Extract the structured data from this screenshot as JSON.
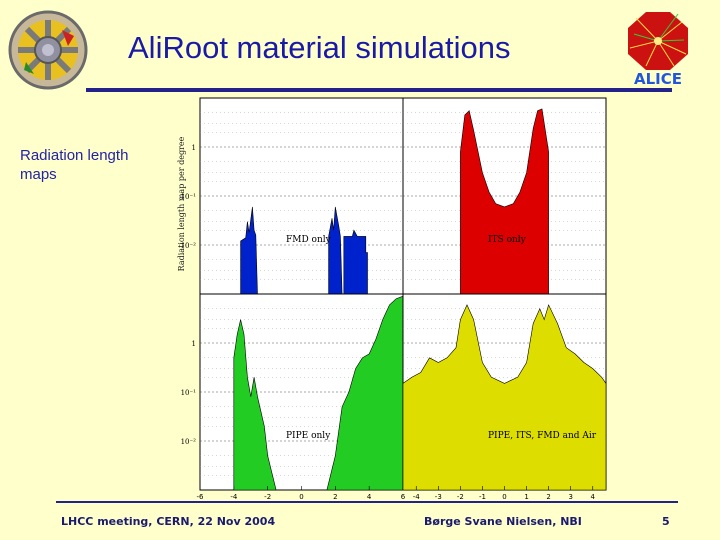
{
  "title": "AliRoot material simulations",
  "sidebar": {
    "line1": "Radiation length",
    "line2": "maps"
  },
  "footer": {
    "event": "LHCC meeting, CERN, 22 Nov 2004",
    "author": "Børge Svane Nielsen, NBI",
    "page": "5"
  },
  "colors": {
    "background": "#ffffcc",
    "title": "#1a1aa6",
    "accent_line": "#22228a",
    "fmd": "#0022cc",
    "its": "#dd0000",
    "pipe": "#22cc22",
    "all": "#dddd00"
  },
  "icons": {
    "left_logo": "detector-wheel-logo",
    "right_logo": "alice-logo"
  },
  "chart_data": [
    {
      "type": "area",
      "scale": "log",
      "ylim": [
        0.001,
        10
      ],
      "ylabel": "Radiation length map per degree",
      "y_tick_labels": [
        "1",
        "10⁻¹",
        "10⁻²"
      ],
      "x_tick_labels": [],
      "series": [
        {
          "name": "FMD only",
          "color": "#0022cc",
          "segments": [
            [
              [
                -3.6,
                0.001
              ],
              [
                -3.6,
                0.012
              ],
              [
                -3.3,
                0.014
              ],
              [
                -3.2,
                0.03
              ],
              [
                -3.1,
                0.018
              ],
              [
                -2.9,
                0.06
              ],
              [
                -2.8,
                0.02
              ],
              [
                -2.7,
                0.016
              ],
              [
                -2.6,
                0.001
              ]
            ],
            [
              [
                1.6,
                0.001
              ],
              [
                1.6,
                0.015
              ],
              [
                1.8,
                0.035
              ],
              [
                1.9,
                0.02
              ],
              [
                2.0,
                0.06
              ],
              [
                2.2,
                0.025
              ],
              [
                2.3,
                0.015
              ],
              [
                2.4,
                0.001
              ]
            ],
            [
              [
                2.5,
                0.001
              ],
              [
                2.5,
                0.015
              ],
              [
                3.0,
                0.015
              ],
              [
                3.1,
                0.02
              ],
              [
                3.3,
                0.015
              ],
              [
                3.8,
                0.015
              ],
              [
                3.8,
                0.007
              ],
              [
                3.9,
                0.007
              ],
              [
                3.9,
                0.001
              ]
            ]
          ]
        }
      ]
    },
    {
      "type": "area",
      "scale": "log",
      "ylim": [
        0.001,
        10
      ],
      "x_tick_labels": [],
      "series": [
        {
          "name": "ITS only",
          "color": "#dd0000",
          "segments": [
            [
              [
                -2.0,
                0.001
              ],
              [
                -2.0,
                0.8
              ],
              [
                -1.8,
                4.5
              ],
              [
                -1.6,
                5.5
              ],
              [
                -1.4,
                2.2
              ],
              [
                -1.0,
                0.3
              ],
              [
                -0.7,
                0.12
              ],
              [
                -0.4,
                0.07
              ],
              [
                0,
                0.06
              ],
              [
                0.4,
                0.07
              ],
              [
                0.7,
                0.12
              ],
              [
                1.0,
                0.3
              ],
              [
                1.3,
                2.4
              ],
              [
                1.5,
                5.5
              ],
              [
                1.7,
                6
              ],
              [
                2.0,
                0.8
              ],
              [
                2.0,
                0.001
              ]
            ]
          ]
        }
      ]
    },
    {
      "type": "area",
      "scale": "log",
      "ylim": [
        0.001,
        10
      ],
      "y_tick_labels": [
        "1",
        "10⁻¹",
        "10⁻²"
      ],
      "x_tick_labels": [
        "-6",
        "-4",
        "-2",
        "0",
        "2",
        "4",
        "6"
      ],
      "series": [
        {
          "name": "PIPE only",
          "color": "#22cc22",
          "segments": [
            [
              [
                -4.0,
                0.001
              ],
              [
                -4.0,
                0.5
              ],
              [
                -3.8,
                1.5
              ],
              [
                -3.6,
                3
              ],
              [
                -3.4,
                1.5
              ],
              [
                -3.2,
                0.2
              ],
              [
                -3.0,
                0.08
              ],
              [
                -2.8,
                0.2
              ],
              [
                -2.6,
                0.08
              ],
              [
                -2.4,
                0.04
              ],
              [
                -2.2,
                0.02
              ],
              [
                -2.0,
                0.005
              ],
              [
                -1.5,
                0.001
              ]
            ],
            [
              [
                1.5,
                0.001
              ],
              [
                2.0,
                0.005
              ],
              [
                2.4,
                0.05
              ],
              [
                2.8,
                0.1
              ],
              [
                3.2,
                0.3
              ],
              [
                3.6,
                0.5
              ],
              [
                4.0,
                0.6
              ],
              [
                4.4,
                1.2
              ],
              [
                4.8,
                3
              ],
              [
                5.2,
                6
              ],
              [
                5.6,
                8
              ],
              [
                6.0,
                9
              ],
              [
                6.0,
                0.001
              ]
            ]
          ]
        }
      ]
    },
    {
      "type": "area",
      "scale": "log",
      "ylim": [
        0.001,
        10
      ],
      "x_tick_labels": [
        "-4",
        "-3",
        "-2",
        "-1",
        "0",
        "1",
        "2",
        "3",
        "4"
      ],
      "series": [
        {
          "name": "PIPE, ITS, FMD and Air",
          "color": "#dddd00",
          "segments": [
            [
              [
                -4.6,
                0.001
              ],
              [
                -4.6,
                0.15
              ],
              [
                -4.2,
                0.2
              ],
              [
                -3.8,
                0.25
              ],
              [
                -3.4,
                0.5
              ],
              [
                -3.0,
                0.4
              ],
              [
                -2.6,
                0.5
              ],
              [
                -2.2,
                0.8
              ],
              [
                -2.0,
                3
              ],
              [
                -1.7,
                6
              ],
              [
                -1.4,
                3
              ],
              [
                -1.0,
                0.4
              ],
              [
                -0.6,
                0.2
              ],
              [
                0,
                0.15
              ],
              [
                0.6,
                0.2
              ],
              [
                1.0,
                0.4
              ],
              [
                1.3,
                2.5
              ],
              [
                1.6,
                5
              ],
              [
                1.8,
                3
              ],
              [
                2.0,
                6
              ],
              [
                2.4,
                2.5
              ],
              [
                2.8,
                0.8
              ],
              [
                3.2,
                0.6
              ],
              [
                3.6,
                0.4
              ],
              [
                4.0,
                0.3
              ],
              [
                4.4,
                0.2
              ],
              [
                4.6,
                0.15
              ],
              [
                4.6,
                0.001
              ]
            ]
          ]
        }
      ]
    }
  ]
}
